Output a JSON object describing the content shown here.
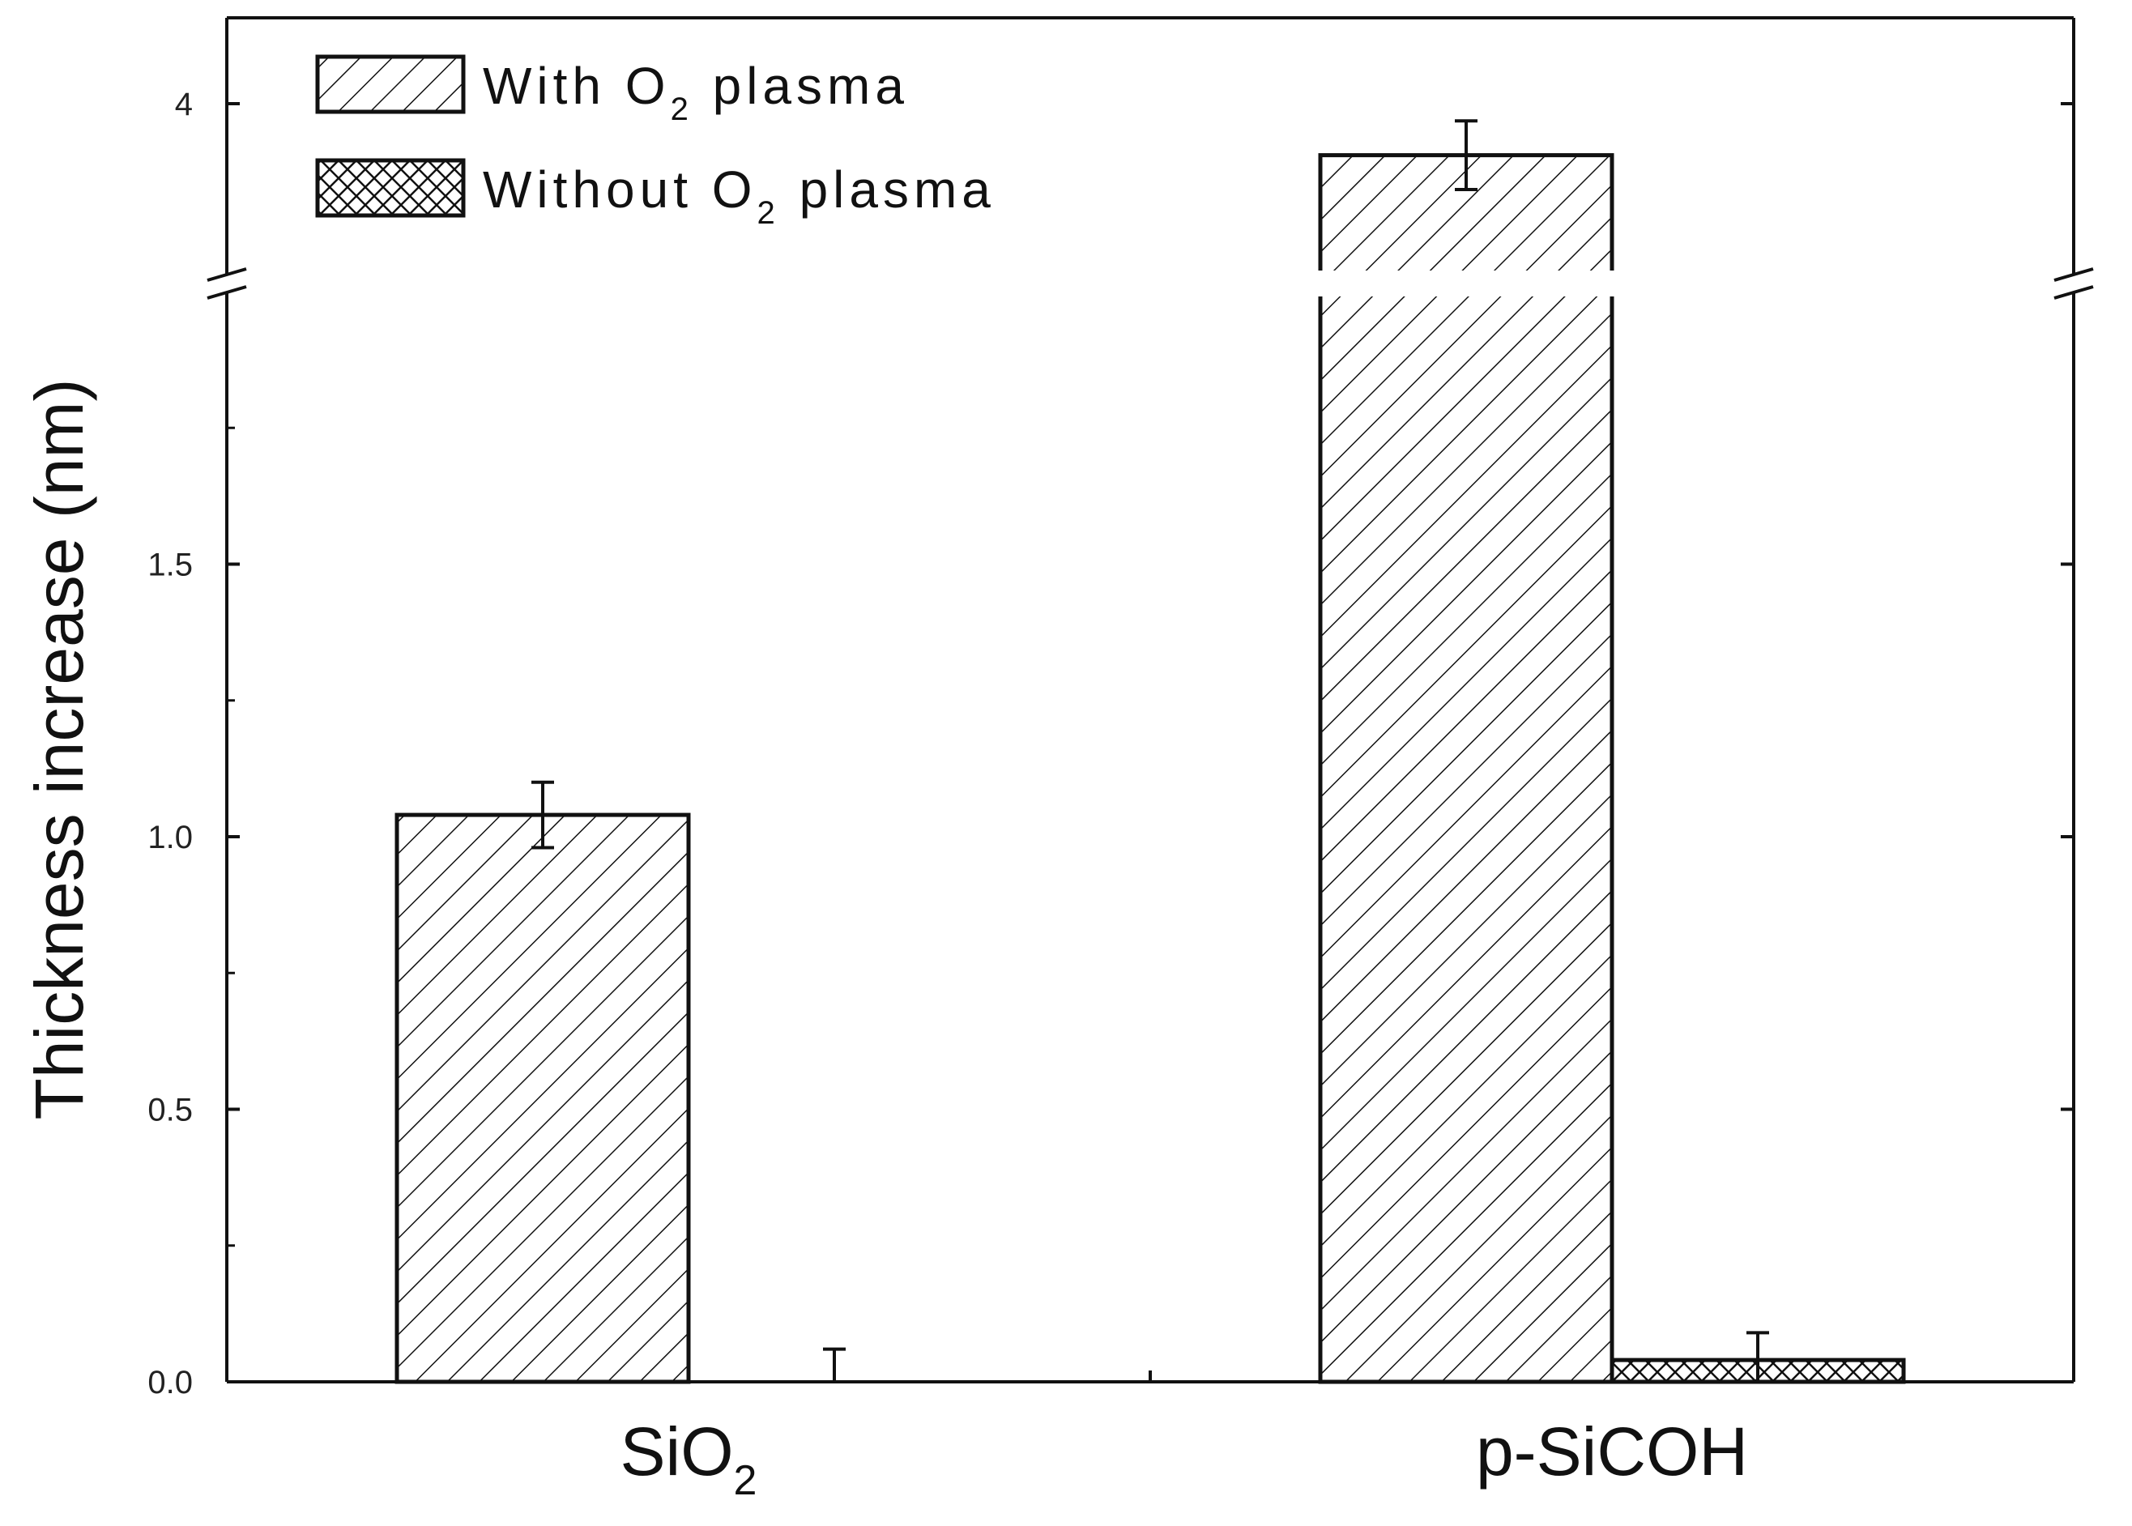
{
  "chart_data": {
    "type": "bar",
    "categories": [
      "SiO2",
      "p-SiCOH"
    ],
    "category_labels": [
      {
        "base": "SiO",
        "sub": "2"
      },
      {
        "base": "p-SiCOH",
        "sub": ""
      }
    ],
    "series": [
      {
        "name": "With O2 plasma",
        "legend_base": "With O",
        "legend_sub": "2",
        "legend_tail": " plasma",
        "pattern": "diagonal-hatch",
        "values": [
          1.04,
          3.85
        ],
        "errors": [
          0.06,
          0.1
        ]
      },
      {
        "name": "Without O2 plasma",
        "legend_base": "Without O",
        "legend_sub": "2",
        "legend_tail": " plasma",
        "pattern": "cross-hatch",
        "values": [
          0.0,
          0.04
        ],
        "errors": [
          0.06,
          0.05
        ]
      }
    ],
    "xlabel": "",
    "ylabel": "Thickness increase (nm)",
    "y_axis_break": {
      "lower_range": [
        0,
        2.0
      ],
      "upper_range": [
        3.5,
        4.25
      ]
    },
    "yticks_lower": [
      0.0,
      0.5,
      1.0,
      1.5
    ],
    "ytick_labels_lower": [
      "0.0",
      "0.5",
      "1.0",
      "1.5"
    ],
    "yticks_upper": [
      4
    ],
    "ytick_labels_upper": [
      "4"
    ],
    "legend_position": "top-left",
    "grid": false
  }
}
